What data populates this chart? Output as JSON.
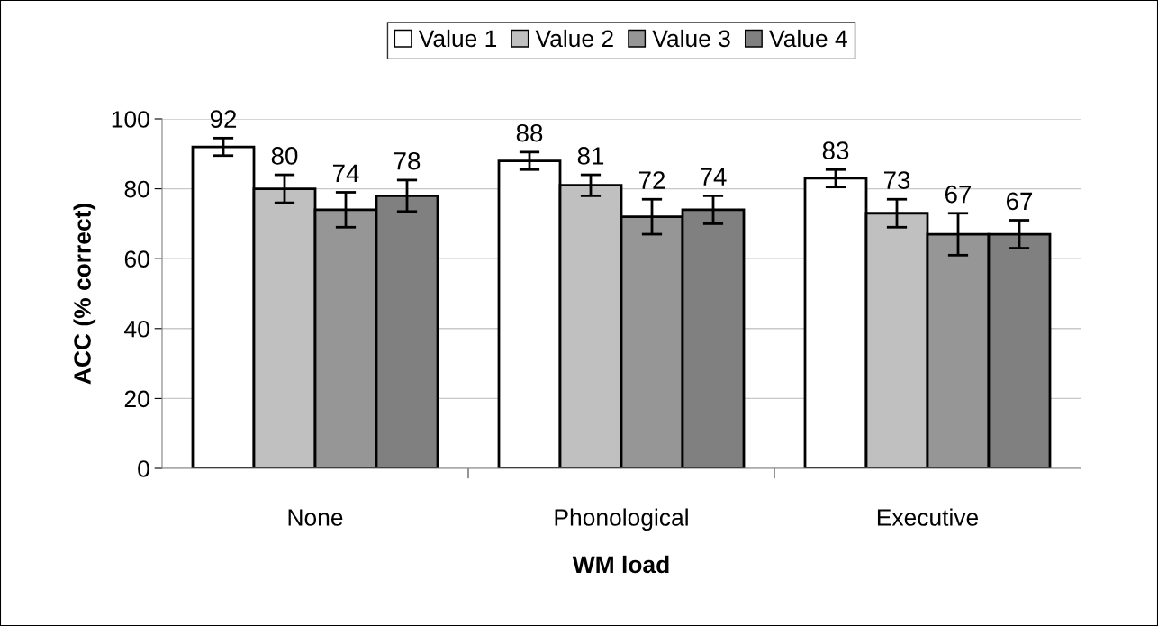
{
  "chart_data": {
    "type": "bar",
    "xlabel": "WM load",
    "ylabel": "ACC (% correct)",
    "categories": [
      "None",
      "Phonological",
      "Executive"
    ],
    "series": [
      {
        "name": "Value 1",
        "color": "#ffffff",
        "values": [
          92,
          88,
          83
        ],
        "errors": [
          2.5,
          2.5,
          2.5
        ]
      },
      {
        "name": "Value 2",
        "color": "#c0c0c0",
        "values": [
          80,
          81,
          73
        ],
        "errors": [
          4,
          3,
          4
        ]
      },
      {
        "name": "Value 3",
        "color": "#969696",
        "values": [
          74,
          72,
          67
        ],
        "errors": [
          5,
          5,
          6
        ]
      },
      {
        "name": "Value 4",
        "color": "#808080",
        "values": [
          78,
          74,
          67
        ],
        "errors": [
          4.5,
          4,
          4
        ]
      }
    ],
    "ylim": [
      0,
      100
    ],
    "yticks": [
      0,
      20,
      40,
      60,
      80,
      100
    ],
    "grid": "y",
    "legend": "top",
    "data_labels": true
  }
}
